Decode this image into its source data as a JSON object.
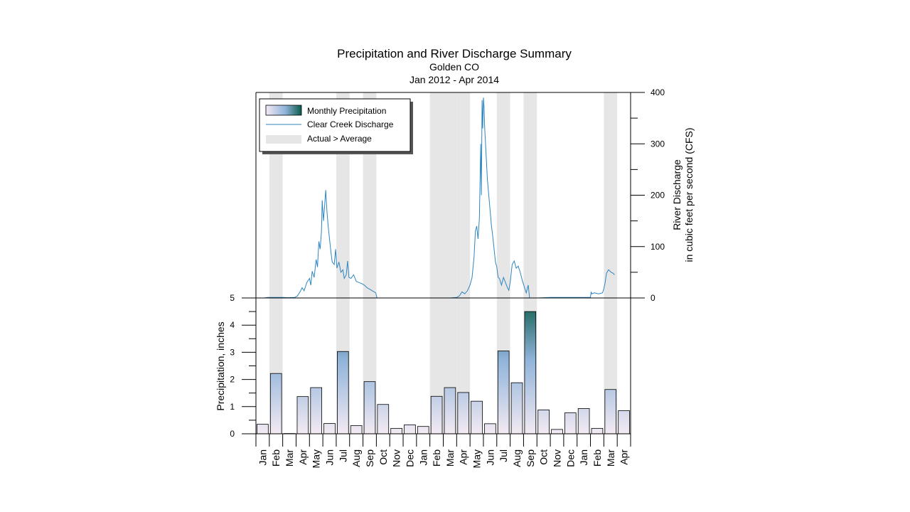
{
  "chart_data": {
    "type": "bar",
    "title": "Precipitation and River Discharge Summary",
    "subtitle_lines": [
      "Golden CO",
      "Jan 2012 - Apr 2014"
    ],
    "categories": [
      "Jan",
      "Feb",
      "Mar",
      "Apr",
      "May",
      "Jun",
      "Jul",
      "Aug",
      "Sep",
      "Oct",
      "Nov",
      "Dec",
      "Jan",
      "Feb",
      "Mar",
      "Apr",
      "May",
      "Jun",
      "Jul",
      "Aug",
      "Sep",
      "Oct",
      "Nov",
      "Dec",
      "Jan",
      "Feb",
      "Mar",
      "Apr"
    ],
    "precipitation": {
      "name": "Monthly Precipitation",
      "ylabel": "Precipitation, inches",
      "ylim": [
        0,
        5
      ],
      "ticks": [
        0,
        1,
        2,
        3,
        4,
        5
      ],
      "values": [
        0.35,
        2.22,
        0.01,
        1.37,
        1.7,
        0.38,
        3.03,
        0.3,
        1.92,
        1.08,
        0.2,
        0.33,
        0.27,
        1.38,
        1.7,
        1.52,
        1.2,
        0.37,
        3.05,
        1.88,
        4.5,
        0.88,
        0.16,
        0.77,
        0.93,
        0.2,
        1.63,
        0.85
      ],
      "color_low": "#f3eaf3",
      "color_mid": "#8fb3d9",
      "color_high": "#0b5a4a"
    },
    "discharge": {
      "name": "Clear Creek Discharge",
      "ylabel_lines": [
        "River Discharge",
        "in cubic feet per second (CFS)"
      ],
      "ylim": [
        0,
        400
      ],
      "ticks": [
        0,
        100,
        200,
        300,
        400
      ],
      "color": "#2e86c1",
      "points": [
        [
          0,
          0
        ],
        [
          0.6,
          0
        ],
        [
          0.9,
          1
        ],
        [
          1.5,
          1
        ],
        [
          2,
          1
        ],
        [
          2.4,
          0.5
        ],
        [
          2.9,
          1
        ],
        [
          3.1,
          4
        ],
        [
          3.3,
          12
        ],
        [
          3.45,
          20
        ],
        [
          3.6,
          14
        ],
        [
          3.8,
          30
        ],
        [
          4.0,
          38
        ],
        [
          4.1,
          25
        ],
        [
          4.2,
          52
        ],
        [
          4.35,
          40
        ],
        [
          4.5,
          75
        ],
        [
          4.6,
          60
        ],
        [
          4.7,
          110
        ],
        [
          4.8,
          95
        ],
        [
          4.9,
          130
        ],
        [
          4.95,
          190
        ],
        [
          5.05,
          150
        ],
        [
          5.15,
          185
        ],
        [
          5.22,
          210
        ],
        [
          5.3,
          170
        ],
        [
          5.4,
          140
        ],
        [
          5.5,
          115
        ],
        [
          5.6,
          90
        ],
        [
          5.7,
          70
        ],
        [
          5.85,
          65
        ],
        [
          5.95,
          95
        ],
        [
          6.05,
          58
        ],
        [
          6.2,
          70
        ],
        [
          6.35,
          50
        ],
        [
          6.5,
          55
        ],
        [
          6.6,
          38
        ],
        [
          6.75,
          45
        ],
        [
          6.85,
          72
        ],
        [
          6.95,
          40
        ],
        [
          7.1,
          38
        ],
        [
          7.3,
          45
        ],
        [
          7.5,
          32
        ],
        [
          7.7,
          30
        ],
        [
          7.9,
          28
        ],
        [
          8.1,
          25
        ],
        [
          8.3,
          20
        ],
        [
          8.5,
          17
        ],
        [
          8.7,
          14
        ],
        [
          8.95,
          10
        ],
        [
          9.05,
          0
        ],
        [
          9.5,
          0
        ],
        [
          12,
          0
        ],
        [
          13,
          0
        ],
        [
          14,
          0
        ],
        [
          14.5,
          0
        ],
        [
          15.0,
          1
        ],
        [
          15.2,
          4
        ],
        [
          15.4,
          12
        ],
        [
          15.6,
          8
        ],
        [
          15.8,
          14
        ],
        [
          16.0,
          25
        ],
        [
          16.15,
          40
        ],
        [
          16.3,
          80
        ],
        [
          16.4,
          130
        ],
        [
          16.5,
          140
        ],
        [
          16.6,
          115
        ],
        [
          16.7,
          155
        ],
        [
          16.8,
          300
        ],
        [
          16.85,
          200
        ],
        [
          16.9,
          385
        ],
        [
          16.95,
          330
        ],
        [
          17.0,
          390
        ],
        [
          17.05,
          370
        ],
        [
          17.1,
          330
        ],
        [
          17.2,
          280
        ],
        [
          17.3,
          230
        ],
        [
          17.4,
          200
        ],
        [
          17.5,
          170
        ],
        [
          17.6,
          140
        ],
        [
          17.7,
          120
        ],
        [
          17.8,
          95
        ],
        [
          17.9,
          70
        ],
        [
          18.0,
          60
        ],
        [
          18.1,
          40
        ],
        [
          18.2,
          38
        ],
        [
          18.35,
          25
        ],
        [
          18.5,
          40
        ],
        [
          18.65,
          30
        ],
        [
          18.8,
          20
        ],
        [
          18.9,
          15
        ],
        [
          19.0,
          30
        ],
        [
          19.15,
          65
        ],
        [
          19.3,
          72
        ],
        [
          19.45,
          58
        ],
        [
          19.6,
          62
        ],
        [
          19.75,
          50
        ],
        [
          19.9,
          35
        ],
        [
          20.05,
          22
        ],
        [
          20.2,
          10
        ],
        [
          20.35,
          25
        ],
        [
          20.45,
          0
        ],
        [
          21,
          0
        ],
        [
          22,
          1
        ],
        [
          23,
          1
        ],
        [
          24,
          1
        ],
        [
          25,
          1
        ],
        [
          25.05,
          12
        ],
        [
          25.1,
          8
        ],
        [
          25.3,
          10
        ],
        [
          25.6,
          8
        ],
        [
          25.9,
          10
        ],
        [
          26.0,
          18
        ],
        [
          26.1,
          30
        ],
        [
          26.2,
          48
        ],
        [
          26.35,
          55
        ],
        [
          26.55,
          50
        ],
        [
          26.7,
          48
        ],
        [
          26.8,
          45
        ]
      ]
    },
    "highlight_months": [
      1,
      6,
      8,
      13,
      14,
      15,
      18,
      20,
      26
    ],
    "highlight_color": "#e6e6e6",
    "legend": {
      "placement": "top-left",
      "items": [
        "Monthly Precipitation",
        "Clear Creek Discharge",
        "Actual > Average"
      ]
    }
  }
}
